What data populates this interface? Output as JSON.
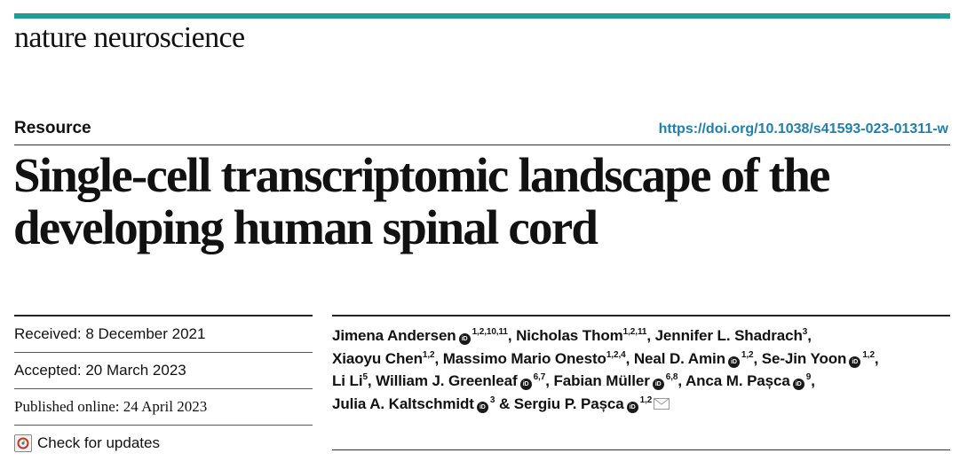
{
  "journal": "nature neuroscience",
  "article_type": "Resource",
  "doi": "https://doi.org/10.1038/s41593-023-01311-w",
  "title_lines": [
    "Single-cell transcriptomic landscape of the",
    "developing human spinal cord"
  ],
  "dates": {
    "received": "Received: 8 December 2021",
    "accepted": "Accepted: 20 March 2023",
    "published": "Published online: 24 April 2023"
  },
  "check_updates": "Check for updates",
  "authors": [
    {
      "name": "Jimena Andersen",
      "orcid": true,
      "sup": "1,2,10,11",
      "sep": ", "
    },
    {
      "name": "Nicholas Thom",
      "orcid": false,
      "sup": "1,2,11",
      "sep": ", "
    },
    {
      "name": "Jennifer L. Shadrach",
      "orcid": false,
      "sup": "3",
      "sep": ","
    },
    {
      "name": "Xiaoyu Chen",
      "orcid": false,
      "sup": "1,2",
      "sep": ", "
    },
    {
      "name": "Massimo Mario Onesto",
      "orcid": false,
      "sup": "1,2,4",
      "sep": ", "
    },
    {
      "name": "Neal D. Amin",
      "orcid": true,
      "sup": "1,2",
      "sep": ", "
    },
    {
      "name": "Se-Jin Yoon",
      "orcid": true,
      "sup": "1,2",
      "sep": ","
    },
    {
      "name": "Li Li",
      "orcid": false,
      "sup": "5",
      "sep": ", "
    },
    {
      "name": "William J. Greenleaf",
      "orcid": true,
      "sup": "6,7",
      "sep": ", "
    },
    {
      "name": "Fabian Müller",
      "orcid": true,
      "sup": "6,8",
      "sep": ", "
    },
    {
      "name": "Anca M. Pașca",
      "orcid": true,
      "sup": "9",
      "sep": ","
    },
    {
      "name": "Julia A. Kaltschmidt",
      "orcid": true,
      "sup": "3",
      "sep": " & "
    },
    {
      "name": "Sergiu P. Pașca",
      "orcid": true,
      "sup": "1,2",
      "sep": ""
    }
  ],
  "icons": {
    "orcid": "orcid-icon",
    "mail": "mail-icon",
    "update": "check-for-updates-icon"
  },
  "colors": {
    "accent_bar": "#1f9d96",
    "doi_link": "#1f7fae"
  }
}
